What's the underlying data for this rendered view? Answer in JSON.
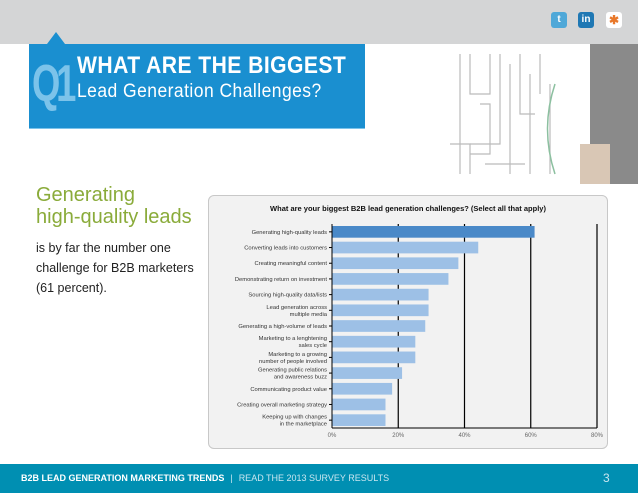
{
  "header": {
    "social": [
      {
        "icon": "twitter-icon",
        "label": "t"
      },
      {
        "icon": "linkedin-icon",
        "label": "in"
      },
      {
        "icon": "slideshare-icon",
        "label": "✱"
      }
    ]
  },
  "banner": {
    "number": "Q1",
    "title_line1": "WHAT ARE THE BIGGEST",
    "title_line2": "Lead Generation Challenges?"
  },
  "intro": {
    "headline_line1": "Generating",
    "headline_line2": "high-quality leads",
    "body": "is by far the number one challenge for B2B marketers (61 percent)."
  },
  "colors": {
    "highlight": "#4a89c8",
    "bar": "#9dc0e6",
    "brand": "#1a8fd0",
    "footer": "#008fb2",
    "headline": "#8aab3a"
  },
  "chart_data": {
    "type": "bar",
    "orientation": "horizontal",
    "title": "What are your biggest B2B lead generation challenges? (Select all that apply)",
    "categories": [
      "Generating high-quality leads",
      "Converting leads into customers",
      "Creating meaningful content",
      "Demonstrating return on investment",
      "Sourcing high-quality data/lists",
      "Lead generation across multiple media",
      "Generating a high-volume of leads",
      "Marketing to a lenghtening sales cycle",
      "Marketing to a growing number of people involved",
      "Generating public relations and awareness buzz",
      "Communicating product value",
      "Creating overall marketing strategy",
      "Keeping up with changes in the marketplace"
    ],
    "values": [
      61,
      44,
      38,
      35,
      29,
      29,
      28,
      25,
      25,
      21,
      18,
      16,
      16
    ],
    "xlim": [
      0,
      80
    ],
    "xticks": [
      "0%",
      "20%",
      "40%",
      "60%",
      "80%"
    ],
    "grid": true
  },
  "footer": {
    "left": "B2B LEAD GENERATION MARKETING TRENDS",
    "sep": "|",
    "right": "READ THE 2013 SURVEY RESULTS",
    "page": "3"
  }
}
